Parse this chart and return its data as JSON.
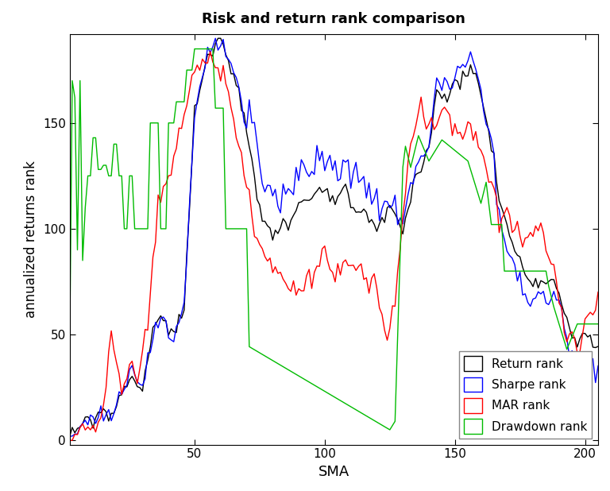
{
  "title": "Risk and return rank comparison",
  "xlabel": "SMA",
  "ylabel": "annualized returns rank",
  "xlim": [
    2,
    205
  ],
  "ylim": [
    -2,
    192
  ],
  "xticks": [
    50,
    100,
    150,
    200
  ],
  "yticks": [
    0,
    50,
    100,
    150
  ],
  "colors": {
    "return": "#000000",
    "sharpe": "#0000FF",
    "mar": "#FF0000",
    "drawdown": "#00BB00"
  },
  "legend": {
    "labels": [
      "Return rank",
      "Sharpe rank",
      "MAR rank",
      "Drawdown rank"
    ],
    "loc": "lower right"
  },
  "background": "#FFFFFF",
  "linewidth": 1.0
}
